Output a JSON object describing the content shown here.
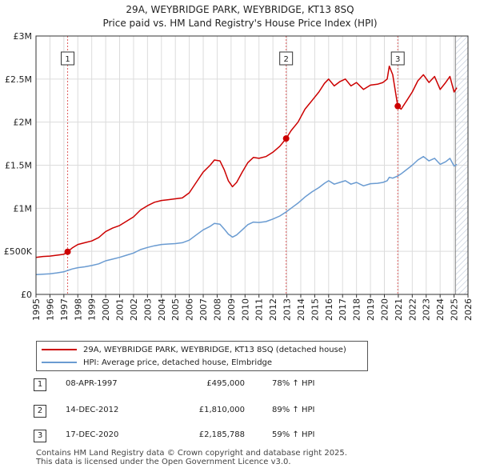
{
  "title_line1": "29A, WEYBRIDGE PARK, WEYBRIDGE, KT13 8SQ",
  "title_line2": "Price paid vs. HM Land Registry's House Price Index (HPI)",
  "colors": {
    "property": "#cc0000",
    "hpi": "#6a9bd1",
    "hatch": "#c9d2e0",
    "grid": "#dcdcdc"
  },
  "legend": {
    "property_label": "29A, WEYBRIDGE PARK, WEYBRIDGE, KT13 8SQ (detached house)",
    "hpi_label": "HPI: Average price, detached house, Elmbridge"
  },
  "sales": [
    {
      "num": "1",
      "date": "08-APR-1997",
      "price": "£495,000",
      "hpi": "78% ↑ HPI"
    },
    {
      "num": "2",
      "date": "14-DEC-2012",
      "price": "£1,810,000",
      "hpi": "89% ↑ HPI"
    },
    {
      "num": "3",
      "date": "17-DEC-2020",
      "price": "£2,185,788",
      "hpi": "59% ↑ HPI"
    }
  ],
  "footer_line1": "Contains HM Land Registry data © Crown copyright and database right 2025.",
  "footer_line2": "This data is licensed under the Open Government Licence v3.0.",
  "chart_data": {
    "type": "line",
    "title": "29A, WEYBRIDGE PARK, WEYBRIDGE, KT13 8SQ — Price paid vs. HM Land Registry's House Price Index (HPI)",
    "xlabel": "",
    "ylabel": "",
    "xlim": [
      1995,
      2026
    ],
    "ylim": [
      0,
      3000000
    ],
    "x_ticks": [
      1995,
      1996,
      1997,
      1998,
      1999,
      2000,
      2001,
      2002,
      2003,
      2004,
      2005,
      2006,
      2007,
      2008,
      2009,
      2010,
      2011,
      2012,
      2013,
      2014,
      2015,
      2016,
      2017,
      2018,
      2019,
      2020,
      2021,
      2022,
      2023,
      2024,
      2025,
      2026
    ],
    "y_ticks": [
      {
        "value": 0,
        "label": "£0"
      },
      {
        "value": 500000,
        "label": "£500K"
      },
      {
        "value": 1000000,
        "label": "£1M"
      },
      {
        "value": 1500000,
        "label": "£1.5M"
      },
      {
        "value": 2000000,
        "label": "£2M"
      },
      {
        "value": 2500000,
        "label": "£2.5M"
      },
      {
        "value": 3000000,
        "label": "£3M"
      }
    ],
    "grid": true,
    "forecast_start": 2025.1,
    "series": [
      {
        "name": "29A, WEYBRIDGE PARK, WEYBRIDGE, KT13 8SQ (detached house)",
        "color": "#cc0000",
        "points": [
          [
            1995.0,
            430000
          ],
          [
            1995.5,
            440000
          ],
          [
            1996.0,
            445000
          ],
          [
            1996.5,
            455000
          ],
          [
            1997.0,
            465000
          ],
          [
            1997.27,
            495000
          ],
          [
            1997.6,
            540000
          ],
          [
            1998.0,
            580000
          ],
          [
            1998.5,
            600000
          ],
          [
            1999.0,
            620000
          ],
          [
            1999.5,
            660000
          ],
          [
            2000.0,
            730000
          ],
          [
            2000.5,
            770000
          ],
          [
            2001.0,
            800000
          ],
          [
            2001.5,
            850000
          ],
          [
            2002.0,
            900000
          ],
          [
            2002.5,
            980000
          ],
          [
            2003.0,
            1030000
          ],
          [
            2003.5,
            1070000
          ],
          [
            2004.0,
            1090000
          ],
          [
            2004.5,
            1100000
          ],
          [
            2005.0,
            1110000
          ],
          [
            2005.5,
            1120000
          ],
          [
            2006.0,
            1180000
          ],
          [
            2006.5,
            1300000
          ],
          [
            2007.0,
            1420000
          ],
          [
            2007.5,
            1500000
          ],
          [
            2007.8,
            1560000
          ],
          [
            2008.2,
            1550000
          ],
          [
            2008.5,
            1450000
          ],
          [
            2008.8,
            1320000
          ],
          [
            2009.1,
            1250000
          ],
          [
            2009.4,
            1300000
          ],
          [
            2009.8,
            1420000
          ],
          [
            2010.2,
            1530000
          ],
          [
            2010.6,
            1590000
          ],
          [
            2011.0,
            1580000
          ],
          [
            2011.5,
            1600000
          ],
          [
            2012.0,
            1650000
          ],
          [
            2012.5,
            1720000
          ],
          [
            2012.95,
            1810000
          ],
          [
            2013.3,
            1900000
          ],
          [
            2013.8,
            2000000
          ],
          [
            2014.3,
            2150000
          ],
          [
            2014.8,
            2250000
          ],
          [
            2015.3,
            2350000
          ],
          [
            2015.7,
            2450000
          ],
          [
            2016.0,
            2500000
          ],
          [
            2016.4,
            2420000
          ],
          [
            2016.8,
            2470000
          ],
          [
            2017.2,
            2500000
          ],
          [
            2017.6,
            2420000
          ],
          [
            2018.0,
            2460000
          ],
          [
            2018.5,
            2380000
          ],
          [
            2019.0,
            2430000
          ],
          [
            2019.5,
            2440000
          ],
          [
            2019.9,
            2460000
          ],
          [
            2020.2,
            2500000
          ],
          [
            2020.35,
            2650000
          ],
          [
            2020.6,
            2550000
          ],
          [
            2020.96,
            2185788
          ],
          [
            2021.2,
            2150000
          ],
          [
            2021.6,
            2250000
          ],
          [
            2022.0,
            2350000
          ],
          [
            2022.4,
            2480000
          ],
          [
            2022.8,
            2550000
          ],
          [
            2023.2,
            2460000
          ],
          [
            2023.6,
            2530000
          ],
          [
            2024.0,
            2380000
          ],
          [
            2024.4,
            2460000
          ],
          [
            2024.7,
            2530000
          ],
          [
            2025.0,
            2350000
          ],
          [
            2025.2,
            2400000
          ]
        ]
      },
      {
        "name": "HPI: Average price, detached house, Elmbridge",
        "color": "#6a9bd1",
        "points": [
          [
            1995.0,
            230000
          ],
          [
            1995.5,
            235000
          ],
          [
            1996.0,
            240000
          ],
          [
            1996.5,
            250000
          ],
          [
            1997.0,
            262000
          ],
          [
            1997.27,
            278000
          ],
          [
            1997.6,
            295000
          ],
          [
            1998.0,
            310000
          ],
          [
            1998.5,
            320000
          ],
          [
            1999.0,
            335000
          ],
          [
            1999.5,
            355000
          ],
          [
            2000.0,
            390000
          ],
          [
            2000.5,
            410000
          ],
          [
            2001.0,
            430000
          ],
          [
            2001.5,
            455000
          ],
          [
            2002.0,
            480000
          ],
          [
            2002.5,
            520000
          ],
          [
            2003.0,
            545000
          ],
          [
            2003.5,
            565000
          ],
          [
            2004.0,
            580000
          ],
          [
            2004.5,
            585000
          ],
          [
            2005.0,
            590000
          ],
          [
            2005.5,
            600000
          ],
          [
            2006.0,
            630000
          ],
          [
            2006.5,
            690000
          ],
          [
            2007.0,
            750000
          ],
          [
            2007.5,
            790000
          ],
          [
            2007.8,
            825000
          ],
          [
            2008.2,
            815000
          ],
          [
            2008.5,
            760000
          ],
          [
            2008.8,
            700000
          ],
          [
            2009.1,
            665000
          ],
          [
            2009.4,
            690000
          ],
          [
            2009.8,
            750000
          ],
          [
            2010.2,
            810000
          ],
          [
            2010.6,
            840000
          ],
          [
            2011.0,
            835000
          ],
          [
            2011.5,
            845000
          ],
          [
            2012.0,
            875000
          ],
          [
            2012.5,
            910000
          ],
          [
            2012.95,
            958000
          ],
          [
            2013.3,
            1000000
          ],
          [
            2013.8,
            1060000
          ],
          [
            2014.3,
            1130000
          ],
          [
            2014.8,
            1190000
          ],
          [
            2015.3,
            1240000
          ],
          [
            2015.7,
            1290000
          ],
          [
            2016.0,
            1320000
          ],
          [
            2016.4,
            1280000
          ],
          [
            2016.8,
            1300000
          ],
          [
            2017.2,
            1320000
          ],
          [
            2017.6,
            1280000
          ],
          [
            2018.0,
            1300000
          ],
          [
            2018.5,
            1260000
          ],
          [
            2019.0,
            1285000
          ],
          [
            2019.5,
            1290000
          ],
          [
            2019.9,
            1300000
          ],
          [
            2020.2,
            1320000
          ],
          [
            2020.35,
            1360000
          ],
          [
            2020.6,
            1350000
          ],
          [
            2020.96,
            1375000
          ],
          [
            2021.2,
            1400000
          ],
          [
            2021.6,
            1450000
          ],
          [
            2022.0,
            1500000
          ],
          [
            2022.4,
            1560000
          ],
          [
            2022.8,
            1600000
          ],
          [
            2023.2,
            1550000
          ],
          [
            2023.6,
            1580000
          ],
          [
            2024.0,
            1510000
          ],
          [
            2024.4,
            1540000
          ],
          [
            2024.7,
            1580000
          ],
          [
            2025.0,
            1490000
          ],
          [
            2025.2,
            1510000
          ]
        ]
      }
    ],
    "sales_markers": [
      {
        "label": "1",
        "x": 1997.27,
        "y": 495000
      },
      {
        "label": "2",
        "x": 2012.95,
        "y": 1810000
      },
      {
        "label": "3",
        "x": 2020.96,
        "y": 2185788
      }
    ]
  }
}
